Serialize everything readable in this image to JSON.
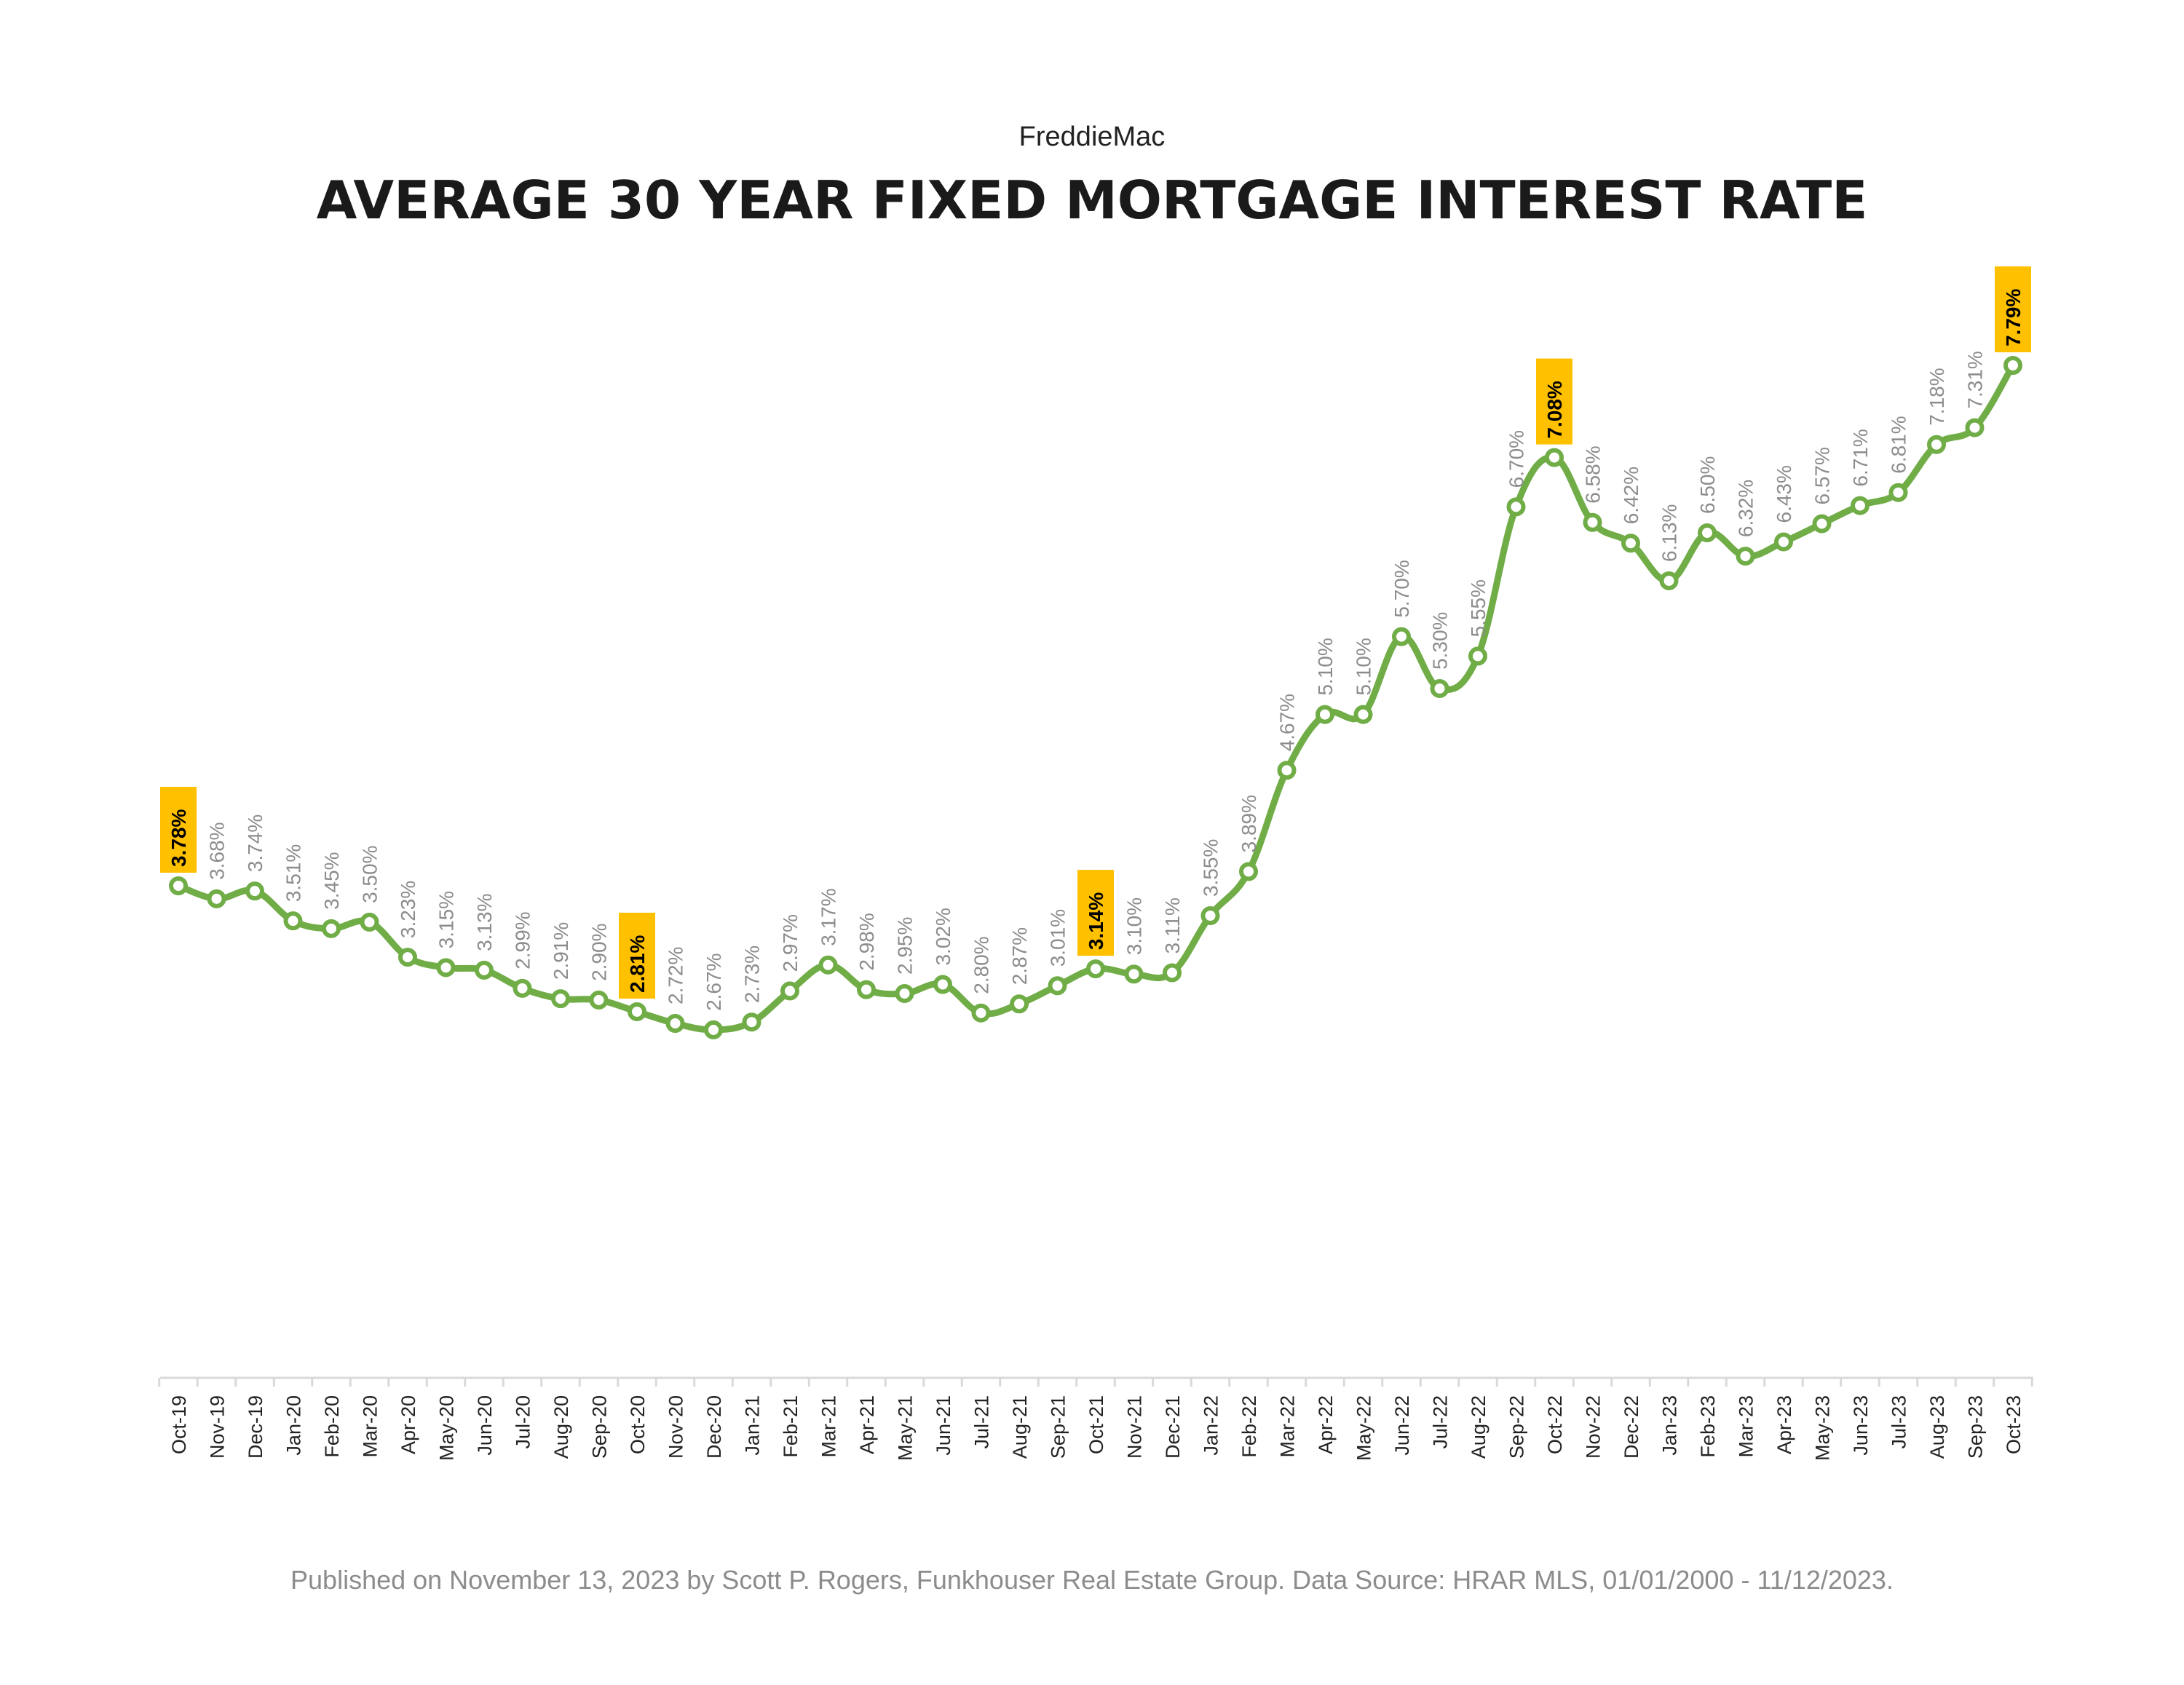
{
  "subtitle": "FreddieMac",
  "title": "AVERAGE 30 YEAR FIXED MORTGAGE INTEREST RATE",
  "footer": "Published on November 13, 2023 by Scott P. Rogers, Funkhouser Real Estate Group. Data Source: HRAR MLS, 01/01/2000 - 11/12/2023.",
  "colors": {
    "line": "#70ad47",
    "marker_fill": "#ffffff",
    "highlight": "#ffc000",
    "axis": "#d9d9d9",
    "label_gray": "#8c8c8c"
  },
  "chart_data": {
    "type": "line",
    "title": "AVERAGE 30 YEAR FIXED MORTGAGE INTEREST RATE",
    "xlabel": "",
    "ylabel": "",
    "ylim": [
      0,
      8.5
    ],
    "grid": false,
    "legend": "none",
    "categories": [
      "Oct-19",
      "Nov-19",
      "Dec-19",
      "Jan-20",
      "Feb-20",
      "Mar-20",
      "Apr-20",
      "May-20",
      "Jun-20",
      "Jul-20",
      "Aug-20",
      "Sep-20",
      "Oct-20",
      "Nov-20",
      "Dec-20",
      "Jan-21",
      "Feb-21",
      "Mar-21",
      "Apr-21",
      "May-21",
      "Jun-21",
      "Jul-21",
      "Aug-21",
      "Sep-21",
      "Oct-21",
      "Nov-21",
      "Dec-21",
      "Jan-22",
      "Feb-22",
      "Mar-22",
      "Apr-22",
      "May-22",
      "Jun-22",
      "Jul-22",
      "Aug-22",
      "Sep-22",
      "Oct-22",
      "Nov-22",
      "Dec-22",
      "Jan-23",
      "Feb-23",
      "Mar-23",
      "Apr-23",
      "May-23",
      "Jun-23",
      "Jul-23",
      "Aug-23",
      "Sep-23",
      "Oct-23"
    ],
    "values": [
      3.78,
      3.68,
      3.74,
      3.51,
      3.45,
      3.5,
      3.23,
      3.15,
      3.13,
      2.99,
      2.91,
      2.9,
      2.81,
      2.72,
      2.67,
      2.73,
      2.97,
      3.17,
      2.98,
      2.95,
      3.02,
      2.8,
      2.87,
      3.01,
      3.14,
      3.1,
      3.11,
      3.55,
      3.89,
      4.67,
      5.1,
      5.1,
      5.7,
      5.3,
      5.55,
      6.7,
      7.08,
      6.58,
      6.42,
      6.13,
      6.5,
      6.32,
      6.43,
      6.57,
      6.71,
      6.81,
      7.18,
      7.31,
      7.79
    ],
    "labels": [
      "3.78%",
      "3.68%",
      "3.74%",
      "3.51%",
      "3.45%",
      "3.50%",
      "3.23%",
      "3.15%",
      "3.13%",
      "2.99%",
      "2.91%",
      "2.90%",
      "2.81%",
      "2.72%",
      "2.67%",
      "2.73%",
      "2.97%",
      "3.17%",
      "2.98%",
      "2.95%",
      "3.02%",
      "2.80%",
      "2.87%",
      "3.01%",
      "3.14%",
      "3.10%",
      "3.11%",
      "3.55%",
      "3.89%",
      "4.67%",
      "5.10%",
      "5.10%",
      "5.70%",
      "5.30%",
      "5.55%",
      "6.70%",
      "7.08%",
      "6.58%",
      "6.42%",
      "6.13%",
      "6.50%",
      "6.32%",
      "6.43%",
      "6.57%",
      "6.71%",
      "6.81%",
      "7.18%",
      "7.31%",
      "7.79%"
    ],
    "highlighted": [
      "Oct-19",
      "Oct-20",
      "Oct-21",
      "Oct-22",
      "Oct-23"
    ]
  }
}
